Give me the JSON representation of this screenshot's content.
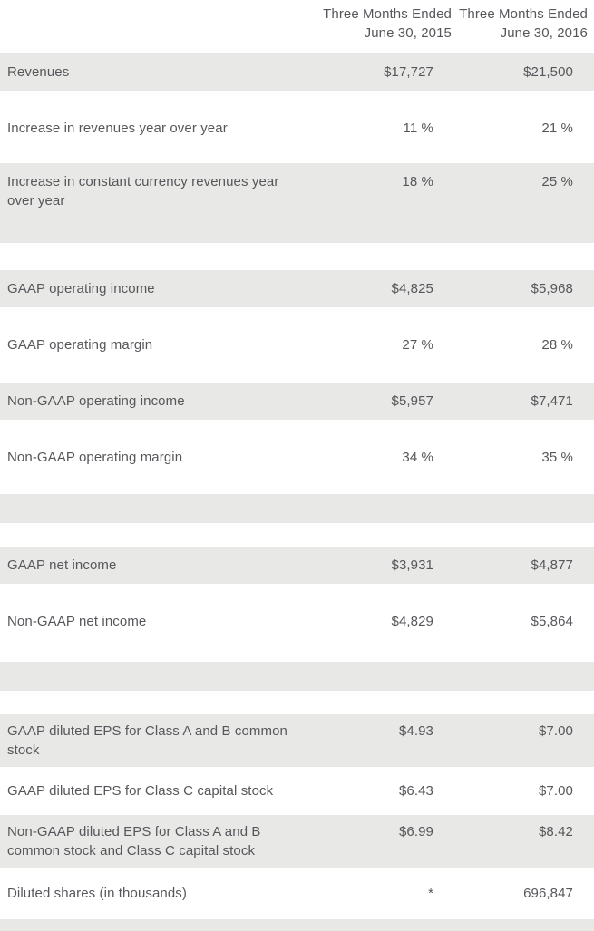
{
  "table": {
    "headers": {
      "col2015": {
        "line1": "Three Months Ended",
        "line2": "June 30, 2015"
      },
      "col2016": {
        "line1": "Three Months Ended",
        "line2": "June 30, 2016"
      }
    },
    "rows": [
      {
        "label": "Revenues",
        "v2015": "$17,727",
        "v2016": "$21,500"
      },
      {
        "label": "Increase in revenues year over year",
        "v2015": "11 %",
        "v2016": "21 %"
      },
      {
        "label": "Increase in constant currency revenues year over year",
        "v2015": "18 %",
        "v2016": "25 %"
      },
      {
        "label": "GAAP operating income",
        "v2015": "$4,825",
        "v2016": "$5,968"
      },
      {
        "label": "GAAP operating margin",
        "v2015": "27 %",
        "v2016": "28 %"
      },
      {
        "label": "Non-GAAP operating income",
        "v2015": "$5,957",
        "v2016": "$7,471"
      },
      {
        "label": "Non-GAAP operating margin",
        "v2015": "34 %",
        "v2016": "35 %"
      },
      {
        "label": "GAAP net income",
        "v2015": "$3,931",
        "v2016": "$4,877"
      },
      {
        "label": "Non-GAAP net income",
        "v2015": "$4,829",
        "v2016": "$5,864"
      },
      {
        "label": "GAAP diluted EPS for Class A and B common stock",
        "v2015": "$4.93",
        "v2016": "$7.00"
      },
      {
        "label": "GAAP diluted EPS for Class C capital stock",
        "v2015": "$6.43",
        "v2016": "$7.00"
      },
      {
        "label": "Non-GAAP diluted EPS for Class A and B common stock and Class C capital stock",
        "v2015": "$6.99",
        "v2016": "$8.42"
      },
      {
        "label": "Diluted shares (in thousands)",
        "v2015": "*",
        "v2016": "696,847"
      }
    ],
    "colors": {
      "stripe": "#e8e8e6",
      "text": "#56575b",
      "background": "#ffffff"
    }
  }
}
